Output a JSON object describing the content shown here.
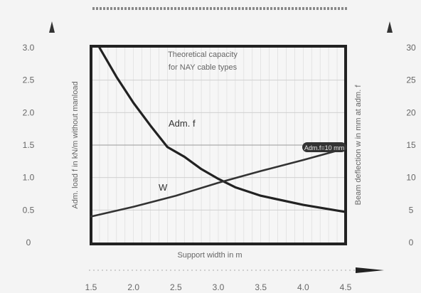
{
  "chart_data": {
    "type": "line",
    "title_lines": [
      "Theoretical capacity",
      "for NAY cable types"
    ],
    "xlabel": "Support width in m",
    "ylabel_left": "Adm. load f in kN/m without manload",
    "ylabel_right": "Beam deflection w in mm at adm. f",
    "xlim": [
      1.5,
      4.5
    ],
    "ylim_left": [
      0,
      3.0
    ],
    "ylim_right": [
      0,
      30
    ],
    "x_ticks": [
      "1.5",
      "2.0",
      "2.5",
      "3.0",
      "3.5",
      "4.0",
      "4.5"
    ],
    "y_ticks_left": [
      "0",
      "0.5",
      "1.0",
      "1.5",
      "2.0",
      "2.5",
      "3.0"
    ],
    "y_ticks_right": [
      "0",
      "5",
      "10",
      "15",
      "20",
      "25",
      "30"
    ],
    "grid": true,
    "series": [
      {
        "name": "Adm. f",
        "axis": "left",
        "color": "#222222",
        "x": [
          1.6,
          1.8,
          2.0,
          2.2,
          2.4,
          2.6,
          2.8,
          3.0,
          3.2,
          3.5,
          4.0,
          4.5
        ],
        "y": [
          3.0,
          2.55,
          2.15,
          1.8,
          1.47,
          1.32,
          1.13,
          0.98,
          0.85,
          0.72,
          0.58,
          0.47
        ]
      },
      {
        "name": "W",
        "axis": "left",
        "color": "#333333",
        "x": [
          1.5,
          2.0,
          2.5,
          3.0,
          3.5,
          4.0,
          4.5
        ],
        "y": [
          0.4,
          0.55,
          0.72,
          0.92,
          1.1,
          1.27,
          1.45
        ]
      }
    ],
    "annotation": "Adm.f=10 mm",
    "reference_line_left": 1.5
  }
}
